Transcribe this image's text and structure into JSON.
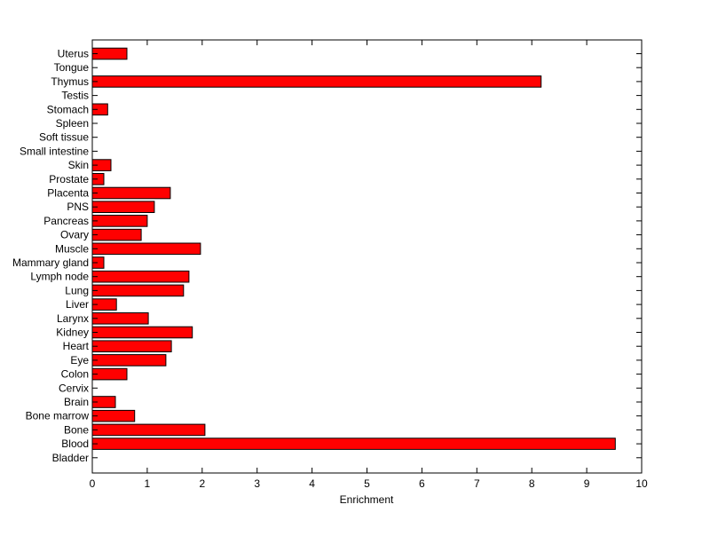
{
  "chart_data": {
    "type": "bar",
    "orientation": "horizontal",
    "title": "",
    "xlabel": "Enrichment",
    "ylabel": "",
    "xlim": [
      0,
      10
    ],
    "xticks": [
      "0",
      "1",
      "2",
      "3",
      "4",
      "5",
      "6",
      "7",
      "8",
      "9",
      "10"
    ],
    "grid": false,
    "legend": "none",
    "bar_color": "#ff0000",
    "bar_edge_color": "#000000",
    "categories": [
      "Bladder",
      "Blood",
      "Bone",
      "Bone marrow",
      "Brain",
      "Cervix",
      "Colon",
      "Eye",
      "Heart",
      "Kidney",
      "Larynx",
      "Liver",
      "Lung",
      "Lymph node",
      "Mammary gland",
      "Muscle",
      "Ovary",
      "Pancreas",
      "PNS",
      "Placenta",
      "Prostate",
      "Skin",
      "Small intestine",
      "Soft tissue",
      "Spleen",
      "Stomach",
      "Testis",
      "Thymus",
      "Tongue",
      "Uterus"
    ],
    "values": [
      0,
      9.52,
      2.05,
      0.77,
      0.42,
      0,
      0.63,
      1.34,
      1.44,
      1.82,
      1.02,
      0.44,
      1.66,
      1.76,
      0.21,
      1.97,
      0.89,
      1.0,
      1.13,
      1.42,
      0.21,
      0.34,
      0,
      0,
      0,
      0.28,
      0,
      8.17,
      0,
      0.63
    ]
  }
}
